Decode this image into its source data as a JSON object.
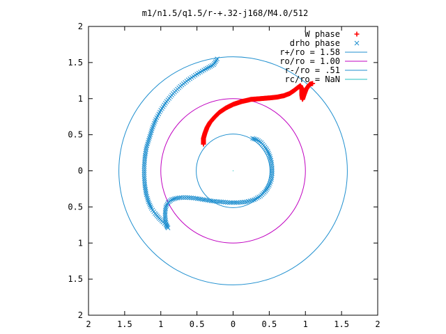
{
  "chart_data": {
    "type": "scatter",
    "title": "m1/n1.5/q1.5/r-+.32-j168/M4.0/512",
    "xlabel": "",
    "ylabel": "",
    "xlim": [
      -2,
      2
    ],
    "ylim": [
      -2,
      2
    ],
    "x_ticks": [
      -2,
      -1.5,
      -1,
      -0.5,
      0,
      0.5,
      1,
      1.5,
      2
    ],
    "y_ticks": [
      -2,
      -1.5,
      -1,
      -0.5,
      0,
      0.5,
      1,
      1.5,
      2
    ],
    "x_tick_labels": [
      "2",
      "1.5",
      "1",
      "0.5",
      "0",
      "0.5",
      "1",
      "1.5",
      "2"
    ],
    "y_tick_labels": [
      "2",
      "1.5",
      "1",
      "0.5",
      "0",
      "0.5",
      "1",
      "1.5",
      "2"
    ],
    "grid": false,
    "legend_position": "top-right",
    "series": [
      {
        "name": "W phase",
        "kind": "marker-plus",
        "color": "#ff0000",
        "points": [
          [
            -0.41,
            0.37
          ],
          [
            -0.41,
            0.45
          ],
          [
            -0.39,
            0.52
          ],
          [
            -0.36,
            0.6
          ],
          [
            -0.32,
            0.67
          ],
          [
            -0.26,
            0.74
          ],
          [
            -0.19,
            0.81
          ],
          [
            -0.1,
            0.87
          ],
          [
            0.0,
            0.92
          ],
          [
            0.12,
            0.96
          ],
          [
            0.25,
            0.99
          ],
          [
            0.38,
            1.0
          ],
          [
            0.5,
            1.01
          ],
          [
            0.6,
            1.02
          ],
          [
            0.7,
            1.04
          ],
          [
            0.78,
            1.07
          ],
          [
            0.84,
            1.11
          ],
          [
            0.89,
            1.15
          ],
          [
            0.93,
            1.18
          ],
          [
            0.95,
            1.14
          ],
          [
            0.95,
            1.05
          ],
          [
            0.96,
            0.99
          ],
          [
            0.98,
            1.05
          ],
          [
            1.01,
            1.13
          ],
          [
            1.06,
            1.2
          ],
          [
            1.1,
            1.21
          ]
        ]
      },
      {
        "name": "drho phase",
        "kind": "marker-x",
        "color": "#1f8fcf",
        "points": [
          [
            0.27,
            0.45
          ],
          [
            0.33,
            0.43
          ],
          [
            0.39,
            0.39
          ],
          [
            0.44,
            0.33
          ],
          [
            0.48,
            0.27
          ],
          [
            0.51,
            0.2
          ],
          [
            0.53,
            0.12
          ],
          [
            0.54,
            0.04
          ],
          [
            0.54,
            -0.04
          ],
          [
            0.53,
            -0.12
          ],
          [
            0.5,
            -0.2
          ],
          [
            0.45,
            -0.28
          ],
          [
            0.38,
            -0.35
          ],
          [
            0.29,
            -0.4
          ],
          [
            0.18,
            -0.43
          ],
          [
            0.07,
            -0.44
          ],
          [
            -0.05,
            -0.44
          ],
          [
            -0.16,
            -0.43
          ],
          [
            -0.28,
            -0.42
          ],
          [
            -0.4,
            -0.4
          ],
          [
            -0.52,
            -0.38
          ],
          [
            -0.63,
            -0.37
          ],
          [
            -0.72,
            -0.37
          ],
          [
            -0.79,
            -0.38
          ],
          [
            -0.85,
            -0.4
          ],
          [
            -0.9,
            -0.44
          ],
          [
            -0.93,
            -0.5
          ],
          [
            -0.94,
            -0.57
          ],
          [
            -0.94,
            -0.64
          ],
          [
            -0.93,
            -0.71
          ],
          [
            -0.91,
            -0.78
          ],
          [
            -0.9,
            -0.79
          ],
          [
            -0.93,
            -0.75
          ],
          [
            -0.97,
            -0.71
          ],
          [
            -1.02,
            -0.66
          ],
          [
            -1.08,
            -0.59
          ],
          [
            -1.13,
            -0.52
          ],
          [
            -1.17,
            -0.43
          ],
          [
            -1.2,
            -0.33
          ],
          [
            -1.22,
            -0.21
          ],
          [
            -1.23,
            -0.08
          ],
          [
            -1.23,
            0.06
          ],
          [
            -1.22,
            0.19
          ],
          [
            -1.2,
            0.32
          ],
          [
            -1.16,
            0.45
          ],
          [
            -1.12,
            0.58
          ],
          [
            -1.07,
            0.71
          ],
          [
            -1.0,
            0.84
          ],
          [
            -0.92,
            0.96
          ],
          [
            -0.83,
            1.07
          ],
          [
            -0.73,
            1.17
          ],
          [
            -0.62,
            1.26
          ],
          [
            -0.5,
            1.34
          ],
          [
            -0.38,
            1.41
          ],
          [
            -0.27,
            1.47
          ],
          [
            -0.22,
            1.55
          ]
        ]
      },
      {
        "name": "r+/ro = 1.58",
        "kind": "circle",
        "radius": 1.58,
        "color": "#1f8fcf"
      },
      {
        "name": "ro/ro = 1.00",
        "kind": "circle",
        "radius": 1.0,
        "color": "#c000c0"
      },
      {
        "name": "r-/ro = .51",
        "kind": "circle",
        "radius": 0.51,
        "color": "#1f8fcf"
      },
      {
        "name": "rc/ro = NaN",
        "kind": "circle",
        "radius": null,
        "color": "#20c0c0"
      }
    ]
  }
}
